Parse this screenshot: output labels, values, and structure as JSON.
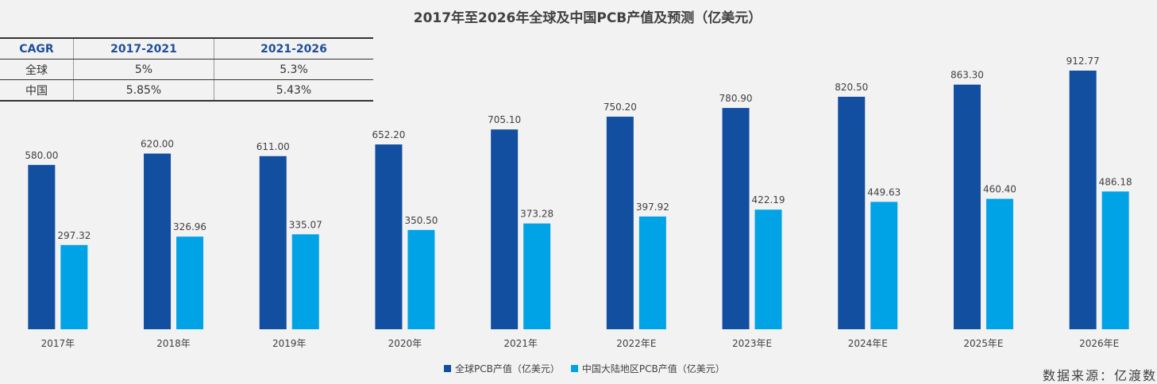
{
  "title": "2017年至2026年全球及中国PCB产值及预测（亿美元）",
  "cagr_table": {
    "headers": [
      "CAGR",
      "2017-2021",
      "2021-2026"
    ],
    "rows": [
      [
        "全球",
        "5%",
        "5.3%"
      ],
      [
        "中国",
        "5.85%",
        "5.43%"
      ]
    ]
  },
  "source": "数据来源：亿渡数",
  "colors": {
    "global": "#124fa0",
    "china": "#00a3e6"
  },
  "chart_data": {
    "type": "bar",
    "title": "2017年至2026年全球及中国PCB产值及预测（亿美元）",
    "categories": [
      "2017年",
      "2018年",
      "2019年",
      "2020年",
      "2021年",
      "2022年E",
      "2023年E",
      "2024年E",
      "2025年E",
      "2026年E"
    ],
    "series": [
      {
        "name": "全球PCB产值（亿美元）",
        "values": [
          580.0,
          620.0,
          611.0,
          652.2,
          705.1,
          750.2,
          780.9,
          820.5,
          863.3,
          912.77
        ],
        "labels": [
          "580.00",
          "620.00",
          "611.00",
          "652.20",
          "705.10",
          "750.20",
          "780.90",
          "820.50",
          "863.30",
          "912.77"
        ]
      },
      {
        "name": "中国大陆地区PCB产值（亿美元）",
        "values": [
          297.32,
          326.96,
          335.07,
          350.5,
          373.28,
          397.92,
          422.19,
          449.63,
          460.4,
          486.18
        ],
        "labels": [
          "297.32",
          "326.96",
          "335.07",
          "350.50",
          "373.28",
          "397.92",
          "422.19",
          "449.63",
          "460.40",
          "486.18"
        ]
      }
    ],
    "ylim": [
      0,
      1000
    ],
    "grid": false,
    "legend": "bottom"
  }
}
